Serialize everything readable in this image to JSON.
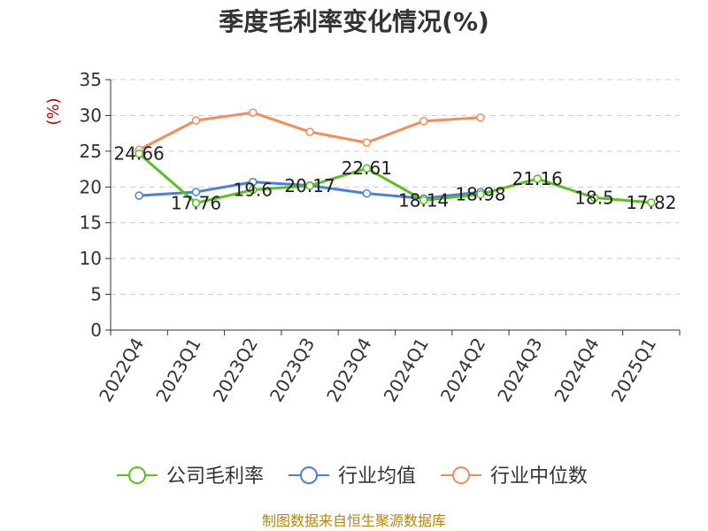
{
  "chart_data": {
    "type": "line",
    "title": "季度毛利率变化情况(%)",
    "ylabel": "(%)",
    "ylim": [
      0,
      35
    ],
    "yticks": [
      0,
      5,
      10,
      15,
      20,
      25,
      30,
      35
    ],
    "grid": true,
    "legend_position": "bottom",
    "categories": [
      "2022Q4",
      "2023Q1",
      "2023Q2",
      "2023Q3",
      "2023Q4",
      "2024Q1",
      "2024Q2",
      "2024Q3",
      "2024Q4",
      "2025Q1"
    ],
    "series": [
      {
        "name": "公司毛利率",
        "color": "#5cc020",
        "values": [
          24.66,
          17.76,
          19.6,
          20.17,
          22.61,
          18.14,
          18.98,
          21.16,
          18.5,
          17.82
        ],
        "labels": [
          "24.66",
          "17.76",
          "19.6",
          "20.17",
          "22.61",
          "18.14",
          "18.98",
          "21.16",
          "18.5",
          "17.82"
        ]
      },
      {
        "name": "行业均值",
        "color": "#4a7fdc",
        "values": [
          18.8,
          19.3,
          20.7,
          20.2,
          19.1,
          18.4,
          19.3,
          null,
          null,
          null
        ]
      },
      {
        "name": "行业中位数",
        "color": "#f28e5b",
        "values": [
          25.2,
          29.3,
          30.4,
          27.7,
          26.2,
          29.2,
          29.7,
          null,
          null,
          null
        ]
      }
    ]
  },
  "footer": {
    "source": "制图数据来自恒生聚源数据库"
  }
}
